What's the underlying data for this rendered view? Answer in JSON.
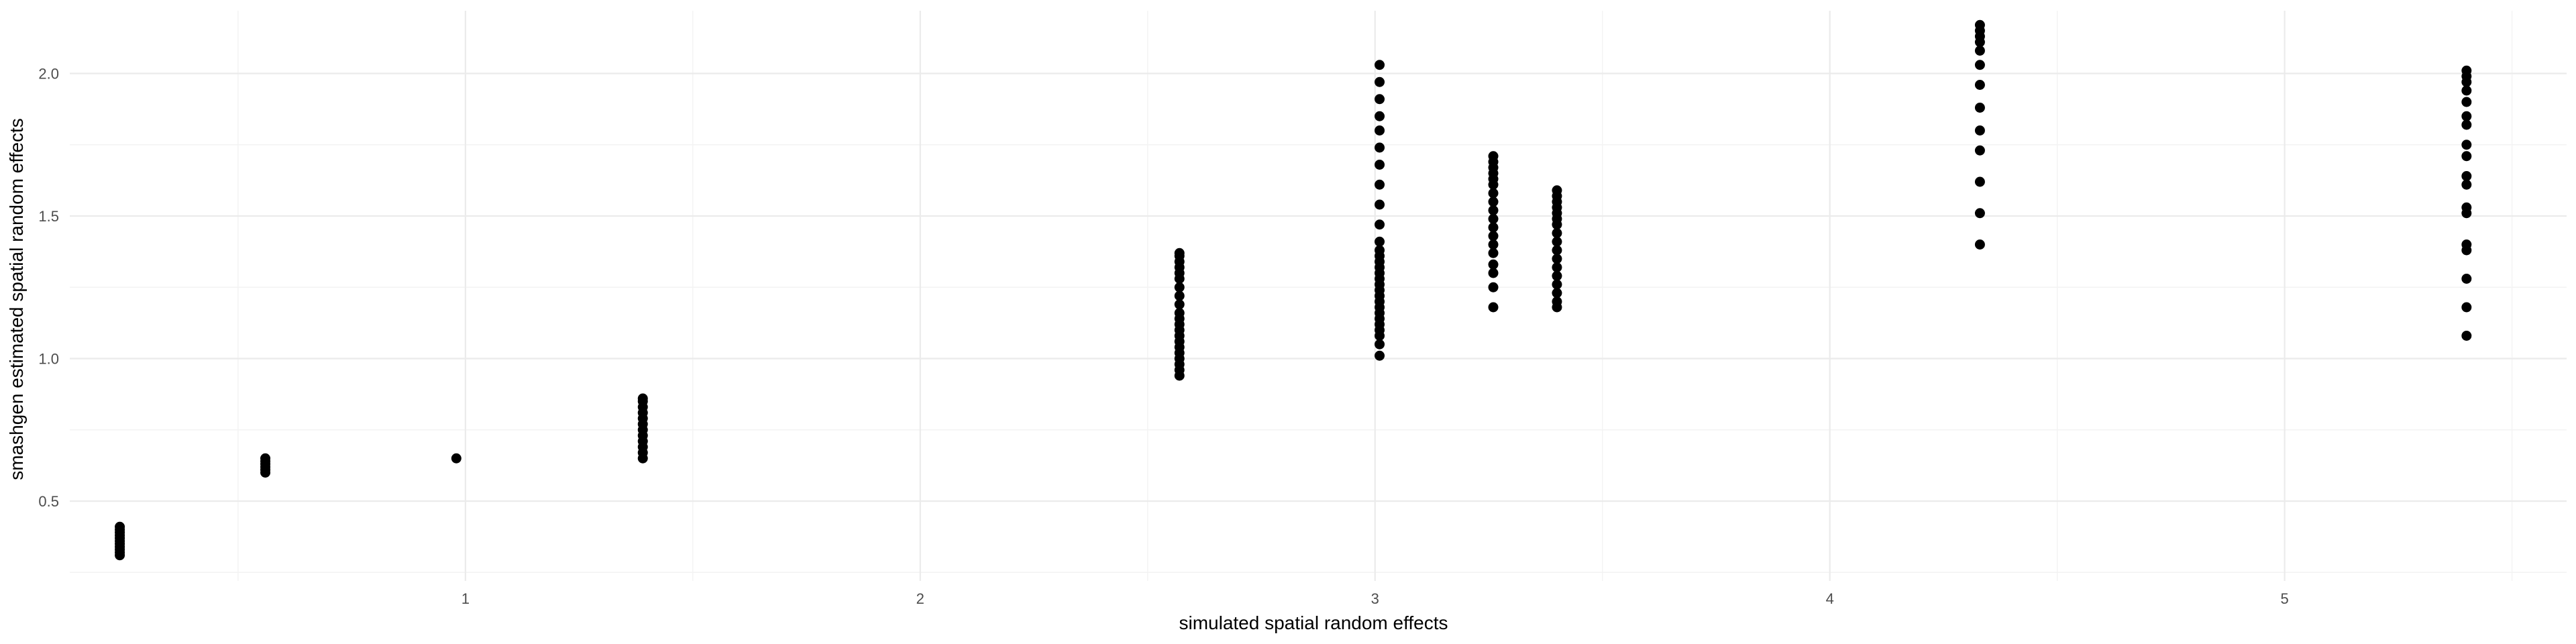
{
  "chart_data": {
    "type": "scatter",
    "title": "",
    "xlabel": "simulated spatial random effects",
    "ylabel": "smashgen estimated spatial random effects",
    "xlim": [
      0.13,
      5.62
    ],
    "ylim": [
      0.22,
      2.22
    ],
    "xticks": [
      1,
      2,
      3,
      4,
      5
    ],
    "xtick_labels": [
      "1",
      "2",
      "3",
      "4",
      "5"
    ],
    "x_minor_ticks": [
      0.5,
      1.5,
      2.5,
      3.5,
      4.5,
      5.5
    ],
    "yticks": [
      0.5,
      1.0,
      1.5,
      2.0
    ],
    "ytick_labels": [
      "0.5",
      "1.0",
      "1.5",
      "2.0"
    ],
    "y_minor_ticks": [
      0.25,
      0.75,
      1.25,
      1.75
    ],
    "grid": true,
    "point_color": "#000000",
    "series": [
      {
        "points": [
          {
            "x": 0.24,
            "y": 0.31
          },
          {
            "x": 0.24,
            "y": 0.32
          },
          {
            "x": 0.24,
            "y": 0.33
          },
          {
            "x": 0.24,
            "y": 0.34
          },
          {
            "x": 0.24,
            "y": 0.35
          },
          {
            "x": 0.24,
            "y": 0.36
          },
          {
            "x": 0.24,
            "y": 0.37
          },
          {
            "x": 0.24,
            "y": 0.38
          },
          {
            "x": 0.24,
            "y": 0.39
          },
          {
            "x": 0.24,
            "y": 0.4
          },
          {
            "x": 0.24,
            "y": 0.41
          },
          {
            "x": 0.56,
            "y": 0.6
          },
          {
            "x": 0.56,
            "y": 0.61
          },
          {
            "x": 0.56,
            "y": 0.62
          },
          {
            "x": 0.56,
            "y": 0.63
          },
          {
            "x": 0.56,
            "y": 0.64
          },
          {
            "x": 0.56,
            "y": 0.65
          },
          {
            "x": 0.98,
            "y": 0.65
          },
          {
            "x": 1.39,
            "y": 0.65
          },
          {
            "x": 1.39,
            "y": 0.67
          },
          {
            "x": 1.39,
            "y": 0.69
          },
          {
            "x": 1.39,
            "y": 0.71
          },
          {
            "x": 1.39,
            "y": 0.73
          },
          {
            "x": 1.39,
            "y": 0.75
          },
          {
            "x": 1.39,
            "y": 0.77
          },
          {
            "x": 1.39,
            "y": 0.79
          },
          {
            "x": 1.39,
            "y": 0.81
          },
          {
            "x": 1.39,
            "y": 0.83
          },
          {
            "x": 1.39,
            "y": 0.85
          },
          {
            "x": 1.39,
            "y": 0.86
          },
          {
            "x": 2.57,
            "y": 0.94
          },
          {
            "x": 2.57,
            "y": 0.96
          },
          {
            "x": 2.57,
            "y": 0.98
          },
          {
            "x": 2.57,
            "y": 1.0
          },
          {
            "x": 2.57,
            "y": 1.02
          },
          {
            "x": 2.57,
            "y": 1.04
          },
          {
            "x": 2.57,
            "y": 1.06
          },
          {
            "x": 2.57,
            "y": 1.08
          },
          {
            "x": 2.57,
            "y": 1.1
          },
          {
            "x": 2.57,
            "y": 1.12
          },
          {
            "x": 2.57,
            "y": 1.14
          },
          {
            "x": 2.57,
            "y": 1.16
          },
          {
            "x": 2.57,
            "y": 1.19
          },
          {
            "x": 2.57,
            "y": 1.22
          },
          {
            "x": 2.57,
            "y": 1.25
          },
          {
            "x": 2.57,
            "y": 1.28
          },
          {
            "x": 2.57,
            "y": 1.3
          },
          {
            "x": 2.57,
            "y": 1.32
          },
          {
            "x": 2.57,
            "y": 1.34
          },
          {
            "x": 2.57,
            "y": 1.36
          },
          {
            "x": 2.57,
            "y": 1.37
          },
          {
            "x": 3.01,
            "y": 1.01
          },
          {
            "x": 3.01,
            "y": 1.05
          },
          {
            "x": 3.01,
            "y": 1.08
          },
          {
            "x": 3.01,
            "y": 1.1
          },
          {
            "x": 3.01,
            "y": 1.12
          },
          {
            "x": 3.01,
            "y": 1.14
          },
          {
            "x": 3.01,
            "y": 1.16
          },
          {
            "x": 3.01,
            "y": 1.18
          },
          {
            "x": 3.01,
            "y": 1.2
          },
          {
            "x": 3.01,
            "y": 1.22
          },
          {
            "x": 3.01,
            "y": 1.24
          },
          {
            "x": 3.01,
            "y": 1.26
          },
          {
            "x": 3.01,
            "y": 1.28
          },
          {
            "x": 3.01,
            "y": 1.3
          },
          {
            "x": 3.01,
            "y": 1.32
          },
          {
            "x": 3.01,
            "y": 1.34
          },
          {
            "x": 3.01,
            "y": 1.36
          },
          {
            "x": 3.01,
            "y": 1.38
          },
          {
            "x": 3.01,
            "y": 1.41
          },
          {
            "x": 3.01,
            "y": 1.47
          },
          {
            "x": 3.01,
            "y": 1.54
          },
          {
            "x": 3.01,
            "y": 1.61
          },
          {
            "x": 3.01,
            "y": 1.68
          },
          {
            "x": 3.01,
            "y": 1.74
          },
          {
            "x": 3.01,
            "y": 1.8
          },
          {
            "x": 3.01,
            "y": 1.85
          },
          {
            "x": 3.01,
            "y": 1.91
          },
          {
            "x": 3.01,
            "y": 1.97
          },
          {
            "x": 3.01,
            "y": 2.03
          },
          {
            "x": 3.26,
            "y": 1.18
          },
          {
            "x": 3.26,
            "y": 1.25
          },
          {
            "x": 3.26,
            "y": 1.3
          },
          {
            "x": 3.26,
            "y": 1.33
          },
          {
            "x": 3.26,
            "y": 1.37
          },
          {
            "x": 3.26,
            "y": 1.4
          },
          {
            "x": 3.26,
            "y": 1.43
          },
          {
            "x": 3.26,
            "y": 1.46
          },
          {
            "x": 3.26,
            "y": 1.49
          },
          {
            "x": 3.26,
            "y": 1.52
          },
          {
            "x": 3.26,
            "y": 1.55
          },
          {
            "x": 3.26,
            "y": 1.58
          },
          {
            "x": 3.26,
            "y": 1.61
          },
          {
            "x": 3.26,
            "y": 1.63
          },
          {
            "x": 3.26,
            "y": 1.65
          },
          {
            "x": 3.26,
            "y": 1.67
          },
          {
            "x": 3.26,
            "y": 1.69
          },
          {
            "x": 3.26,
            "y": 1.71
          },
          {
            "x": 3.4,
            "y": 1.18
          },
          {
            "x": 3.4,
            "y": 1.2
          },
          {
            "x": 3.4,
            "y": 1.23
          },
          {
            "x": 3.4,
            "y": 1.26
          },
          {
            "x": 3.4,
            "y": 1.29
          },
          {
            "x": 3.4,
            "y": 1.32
          },
          {
            "x": 3.4,
            "y": 1.35
          },
          {
            "x": 3.4,
            "y": 1.38
          },
          {
            "x": 3.4,
            "y": 1.41
          },
          {
            "x": 3.4,
            "y": 1.44
          },
          {
            "x": 3.4,
            "y": 1.47
          },
          {
            "x": 3.4,
            "y": 1.49
          },
          {
            "x": 3.4,
            "y": 1.51
          },
          {
            "x": 3.4,
            "y": 1.53
          },
          {
            "x": 3.4,
            "y": 1.55
          },
          {
            "x": 3.4,
            "y": 1.57
          },
          {
            "x": 3.4,
            "y": 1.59
          },
          {
            "x": 4.33,
            "y": 1.4
          },
          {
            "x": 4.33,
            "y": 1.51
          },
          {
            "x": 4.33,
            "y": 1.62
          },
          {
            "x": 4.33,
            "y": 1.73
          },
          {
            "x": 4.33,
            "y": 1.8
          },
          {
            "x": 4.33,
            "y": 1.88
          },
          {
            "x": 4.33,
            "y": 1.96
          },
          {
            "x": 4.33,
            "y": 2.03
          },
          {
            "x": 4.33,
            "y": 2.08
          },
          {
            "x": 4.33,
            "y": 2.11
          },
          {
            "x": 4.33,
            "y": 2.13
          },
          {
            "x": 4.33,
            "y": 2.15
          },
          {
            "x": 4.33,
            "y": 2.17
          },
          {
            "x": 5.4,
            "y": 1.08
          },
          {
            "x": 5.4,
            "y": 1.18
          },
          {
            "x": 5.4,
            "y": 1.28
          },
          {
            "x": 5.4,
            "y": 1.38
          },
          {
            "x": 5.4,
            "y": 1.4
          },
          {
            "x": 5.4,
            "y": 1.51
          },
          {
            "x": 5.4,
            "y": 1.53
          },
          {
            "x": 5.4,
            "y": 1.61
          },
          {
            "x": 5.4,
            "y": 1.64
          },
          {
            "x": 5.4,
            "y": 1.71
          },
          {
            "x": 5.4,
            "y": 1.75
          },
          {
            "x": 5.4,
            "y": 1.82
          },
          {
            "x": 5.4,
            "y": 1.85
          },
          {
            "x": 5.4,
            "y": 1.9
          },
          {
            "x": 5.4,
            "y": 1.94
          },
          {
            "x": 5.4,
            "y": 1.97
          },
          {
            "x": 5.4,
            "y": 1.99
          },
          {
            "x": 5.4,
            "y": 2.01
          }
        ]
      }
    ]
  }
}
